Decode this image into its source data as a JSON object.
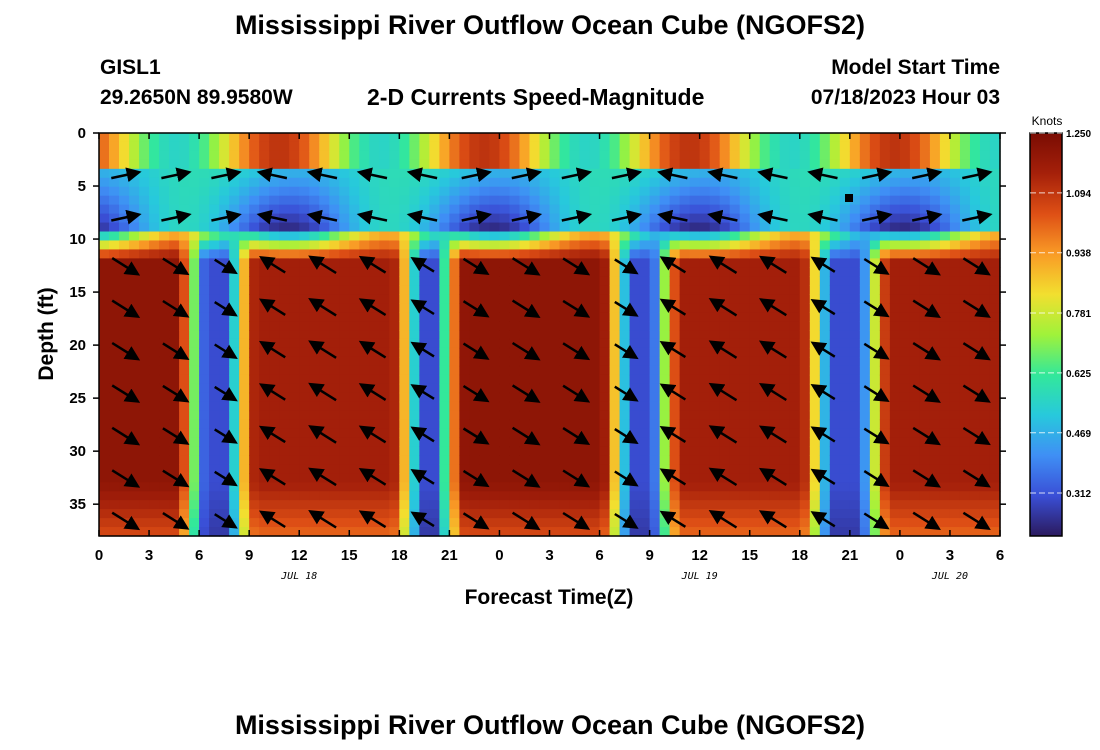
{
  "header": {
    "title": "Mississippi River Outflow Ocean Cube (NGOFS2)",
    "station": "GISL1",
    "coords": "29.2650N  89.9580W",
    "subtitle": "2-D Currents Speed-Magnitude",
    "model_start_label": "Model Start Time",
    "model_start_value": "07/18/2023 Hour 03"
  },
  "footer": {
    "title": "Mississippi River Outflow Ocean Cube (NGOFS2)"
  },
  "chart_data": {
    "type": "heatmap",
    "title": "2-D Currents Speed-Magnitude",
    "xlabel": "Forecast Time(Z)",
    "ylabel": "Depth (ft)",
    "x_range_hours": [
      0,
      54
    ],
    "y_range_ft": [
      0,
      38
    ],
    "y_inverted": true,
    "x_tick_labels": [
      "0",
      "3",
      "6",
      "9",
      "12",
      "15",
      "18",
      "21",
      "0",
      "3",
      "6",
      "9",
      "12",
      "15",
      "18",
      "21",
      "0",
      "3",
      "6"
    ],
    "y_ticks": [
      0,
      5,
      10,
      15,
      20,
      25,
      30,
      35
    ],
    "date_labels": [
      {
        "label": "JUL 18",
        "hour": 12
      },
      {
        "label": "JUL 19",
        "hour": 36
      },
      {
        "label": "JUL 20",
        "hour": 51
      }
    ],
    "colorbar": {
      "unit": "Knots",
      "min": 0.2,
      "max": 1.25,
      "ticks": [
        1.25,
        1.094,
        0.938,
        0.781,
        0.625,
        0.469,
        0.312
      ],
      "tick_labels": [
        "1.250",
        "1.094",
        "0.938",
        "0.781",
        "0.625",
        "0.469",
        "0.312"
      ],
      "colors": [
        "#2b1a5e",
        "#3a4fd6",
        "#3f8ff5",
        "#27c9dc",
        "#33e89a",
        "#a0f23a",
        "#f2df2f",
        "#f99b26",
        "#de4f15",
        "#a5200a",
        "#7a0c03"
      ]
    },
    "lower_layer_peaks": [
      {
        "center_hour": 1.5,
        "half_width_hours": 3,
        "speed": 1.2
      },
      {
        "center_hour": 13.5,
        "half_width_hours": 4,
        "speed": 1.15
      },
      {
        "center_hour": 26,
        "half_width_hours": 4,
        "speed": 1.2
      },
      {
        "center_hour": 38.5,
        "half_width_hours": 3.5,
        "speed": 1.15
      },
      {
        "center_hour": 51,
        "half_width_hours": 3.5,
        "speed": 1.15
      }
    ],
    "grid": false,
    "arrows": "current direction vectors"
  }
}
